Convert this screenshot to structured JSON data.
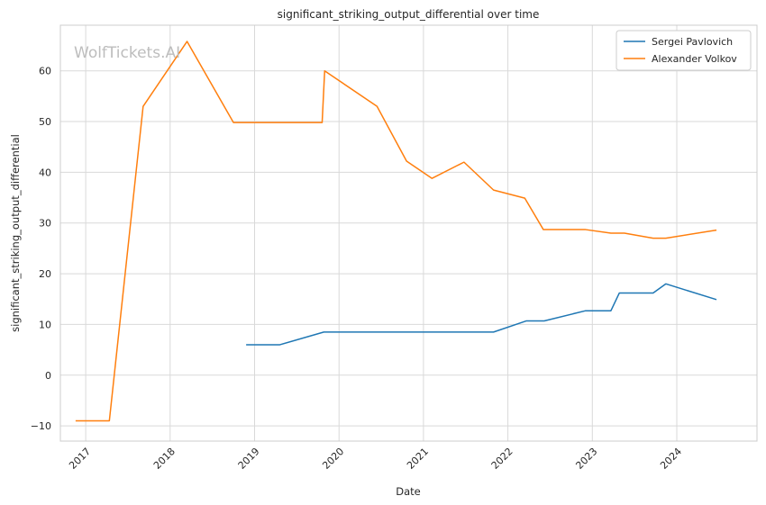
{
  "chart_data": {
    "type": "line",
    "title": "significant_striking_output_differential over time",
    "xlabel": "Date",
    "ylabel": "significant_striking_output_differential",
    "watermark": "WolfTickets.AI",
    "xlim": [
      2016.7,
      2024.95
    ],
    "ylim": [
      -13,
      69
    ],
    "xticks": [
      2017,
      2018,
      2019,
      2020,
      2021,
      2022,
      2023,
      2024
    ],
    "xtick_labels": [
      "2017",
      "2018",
      "2019",
      "2020",
      "2021",
      "2022",
      "2023",
      "2024"
    ],
    "yticks": [
      -10,
      0,
      10,
      20,
      30,
      40,
      50,
      60
    ],
    "ytick_labels": [
      "−10",
      "0",
      "10",
      "20",
      "30",
      "40",
      "50",
      "60"
    ],
    "grid": true,
    "legend_position": "top-right",
    "series": [
      {
        "name": "Sergei Pavlovich",
        "color": "#1f77b4",
        "x": [
          2018.9,
          2019.3,
          2019.82,
          2021.83,
          2022.22,
          2022.43,
          2022.92,
          2023.22,
          2023.32,
          2023.72,
          2023.87,
          2024.47
        ],
        "y": [
          6.0,
          6.0,
          8.5,
          8.5,
          10.7,
          10.7,
          12.7,
          12.7,
          16.2,
          16.2,
          18.0,
          14.9
        ]
      },
      {
        "name": "Alexander Volkov",
        "color": "#ff7f0e",
        "x": [
          2016.88,
          2017.28,
          2017.68,
          2018.2,
          2018.75,
          2019.8,
          2019.83,
          2020.45,
          2020.8,
          2021.1,
          2021.48,
          2021.83,
          2022.2,
          2022.42,
          2022.92,
          2023.22,
          2023.38,
          2023.72,
          2023.87,
          2024.47
        ],
        "y": [
          -9.0,
          -9.0,
          53.0,
          65.8,
          49.8,
          49.8,
          60.0,
          53.0,
          42.2,
          38.8,
          42.0,
          36.5,
          34.9,
          28.7,
          28.7,
          28.0,
          28.0,
          27.0,
          27.0,
          28.6
        ]
      }
    ]
  }
}
